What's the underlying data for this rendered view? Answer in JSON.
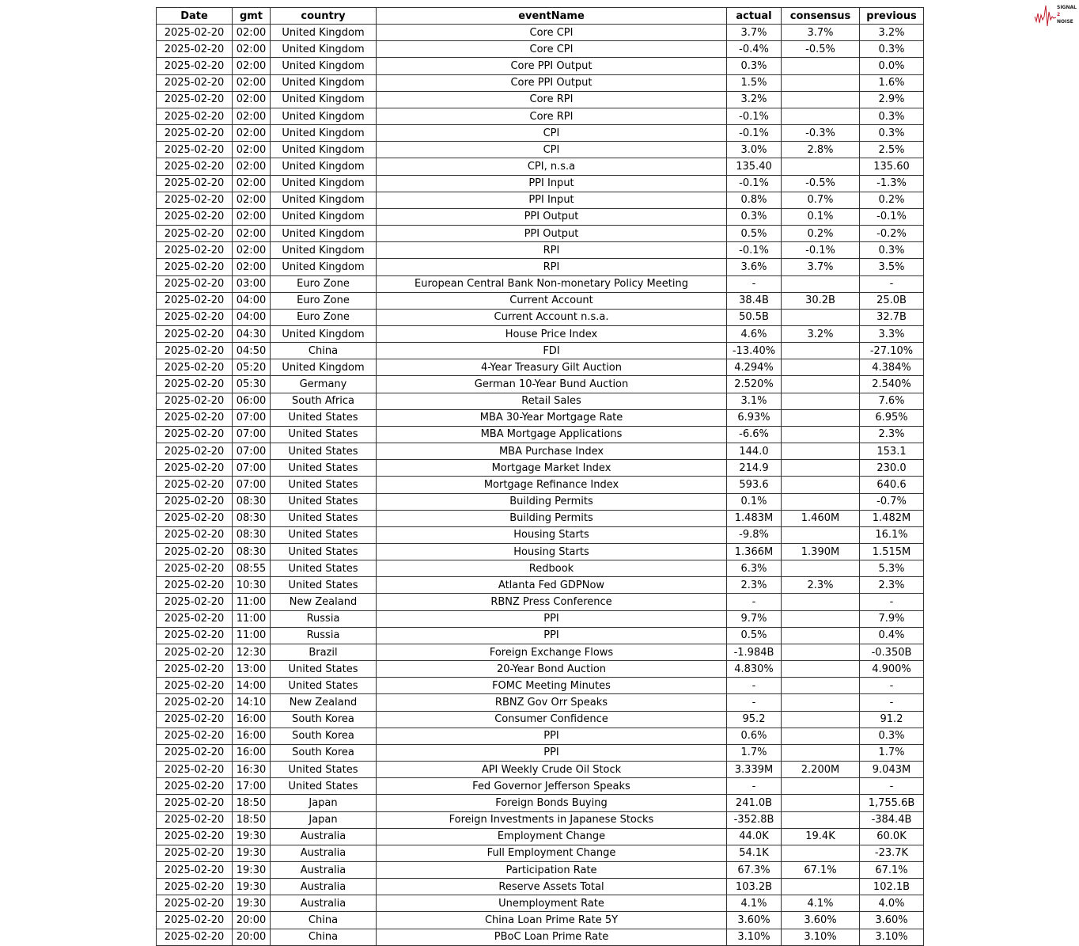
{
  "logo": {
    "line1": "SIGNAL",
    "line2": "2",
    "line3": "NOISE",
    "accent": "#c0182a"
  },
  "table": {
    "columns": [
      "Date",
      "gmt",
      "country",
      "eventName",
      "actual",
      "consensus",
      "previous"
    ],
    "rows": [
      [
        "2025-02-20",
        "02:00",
        "United Kingdom",
        "Core CPI",
        "3.7%",
        "3.7%",
        "3.2%"
      ],
      [
        "2025-02-20",
        "02:00",
        "United Kingdom",
        "Core CPI",
        "-0.4%",
        "-0.5%",
        "0.3%"
      ],
      [
        "2025-02-20",
        "02:00",
        "United Kingdom",
        "Core PPI Output",
        "0.3%",
        "",
        "0.0%"
      ],
      [
        "2025-02-20",
        "02:00",
        "United Kingdom",
        "Core PPI Output",
        "1.5%",
        "",
        "1.6%"
      ],
      [
        "2025-02-20",
        "02:00",
        "United Kingdom",
        "Core RPI",
        "3.2%",
        "",
        "2.9%"
      ],
      [
        "2025-02-20",
        "02:00",
        "United Kingdom",
        "Core RPI",
        "-0.1%",
        "",
        "0.3%"
      ],
      [
        "2025-02-20",
        "02:00",
        "United Kingdom",
        "CPI",
        "-0.1%",
        "-0.3%",
        "0.3%"
      ],
      [
        "2025-02-20",
        "02:00",
        "United Kingdom",
        "CPI",
        "3.0%",
        "2.8%",
        "2.5%"
      ],
      [
        "2025-02-20",
        "02:00",
        "United Kingdom",
        "CPI, n.s.a",
        "135.40",
        "",
        "135.60"
      ],
      [
        "2025-02-20",
        "02:00",
        "United Kingdom",
        "PPI Input",
        "-0.1%",
        "-0.5%",
        "-1.3%"
      ],
      [
        "2025-02-20",
        "02:00",
        "United Kingdom",
        "PPI Input",
        "0.8%",
        "0.7%",
        "0.2%"
      ],
      [
        "2025-02-20",
        "02:00",
        "United Kingdom",
        "PPI Output",
        "0.3%",
        "0.1%",
        "-0.1%"
      ],
      [
        "2025-02-20",
        "02:00",
        "United Kingdom",
        "PPI Output",
        "0.5%",
        "0.2%",
        "-0.2%"
      ],
      [
        "2025-02-20",
        "02:00",
        "United Kingdom",
        "RPI",
        "-0.1%",
        "-0.1%",
        "0.3%"
      ],
      [
        "2025-02-20",
        "02:00",
        "United Kingdom",
        "RPI",
        "3.6%",
        "3.7%",
        "3.5%"
      ],
      [
        "2025-02-20",
        "03:00",
        "Euro Zone",
        "European Central Bank Non-monetary Policy Meeting",
        "-",
        "",
        "-"
      ],
      [
        "2025-02-20",
        "04:00",
        "Euro Zone",
        "Current Account",
        "38.4B",
        "30.2B",
        "25.0B"
      ],
      [
        "2025-02-20",
        "04:00",
        "Euro Zone",
        "Current Account n.s.a.",
        "50.5B",
        "",
        "32.7B"
      ],
      [
        "2025-02-20",
        "04:30",
        "United Kingdom",
        "House Price Index",
        "4.6%",
        "3.2%",
        "3.3%"
      ],
      [
        "2025-02-20",
        "04:50",
        "China",
        "FDI",
        "-13.40%",
        "",
        "-27.10%"
      ],
      [
        "2025-02-20",
        "05:20",
        "United Kingdom",
        "4-Year Treasury Gilt Auction",
        "4.294%",
        "",
        "4.384%"
      ],
      [
        "2025-02-20",
        "05:30",
        "Germany",
        "German 10-Year Bund Auction",
        "2.520%",
        "",
        "2.540%"
      ],
      [
        "2025-02-20",
        "06:00",
        "South Africa",
        "Retail Sales",
        "3.1%",
        "",
        "7.6%"
      ],
      [
        "2025-02-20",
        "07:00",
        "United States",
        "MBA 30-Year Mortgage Rate",
        "6.93%",
        "",
        "6.95%"
      ],
      [
        "2025-02-20",
        "07:00",
        "United States",
        "MBA Mortgage Applications",
        "-6.6%",
        "",
        "2.3%"
      ],
      [
        "2025-02-20",
        "07:00",
        "United States",
        "MBA Purchase Index",
        "144.0",
        "",
        "153.1"
      ],
      [
        "2025-02-20",
        "07:00",
        "United States",
        "Mortgage Market Index",
        "214.9",
        "",
        "230.0"
      ],
      [
        "2025-02-20",
        "07:00",
        "United States",
        "Mortgage Refinance Index",
        "593.6",
        "",
        "640.6"
      ],
      [
        "2025-02-20",
        "08:30",
        "United States",
        "Building Permits",
        "0.1%",
        "",
        "-0.7%"
      ],
      [
        "2025-02-20",
        "08:30",
        "United States",
        "Building Permits",
        "1.483M",
        "1.460M",
        "1.482M"
      ],
      [
        "2025-02-20",
        "08:30",
        "United States",
        "Housing Starts",
        "-9.8%",
        "",
        "16.1%"
      ],
      [
        "2025-02-20",
        "08:30",
        "United States",
        "Housing Starts",
        "1.366M",
        "1.390M",
        "1.515M"
      ],
      [
        "2025-02-20",
        "08:55",
        "United States",
        "Redbook",
        "6.3%",
        "",
        "5.3%"
      ],
      [
        "2025-02-20",
        "10:30",
        "United States",
        "Atlanta Fed GDPNow",
        "2.3%",
        "2.3%",
        "2.3%"
      ],
      [
        "2025-02-20",
        "11:00",
        "New Zealand",
        "RBNZ Press Conference",
        "-",
        "",
        "-"
      ],
      [
        "2025-02-20",
        "11:00",
        "Russia",
        "PPI",
        "9.7%",
        "",
        "7.9%"
      ],
      [
        "2025-02-20",
        "11:00",
        "Russia",
        "PPI",
        "0.5%",
        "",
        "0.4%"
      ],
      [
        "2025-02-20",
        "12:30",
        "Brazil",
        "Foreign Exchange Flows",
        "-1.984B",
        "",
        "-0.350B"
      ],
      [
        "2025-02-20",
        "13:00",
        "United States",
        "20-Year Bond Auction",
        "4.830%",
        "",
        "4.900%"
      ],
      [
        "2025-02-20",
        "14:00",
        "United States",
        "FOMC Meeting Minutes",
        "-",
        "",
        "-"
      ],
      [
        "2025-02-20",
        "14:10",
        "New Zealand",
        "RBNZ Gov Orr Speaks",
        "-",
        "",
        "-"
      ],
      [
        "2025-02-20",
        "16:00",
        "South Korea",
        "Consumer Confidence",
        "95.2",
        "",
        "91.2"
      ],
      [
        "2025-02-20",
        "16:00",
        "South Korea",
        "PPI",
        "0.6%",
        "",
        "0.3%"
      ],
      [
        "2025-02-20",
        "16:00",
        "South Korea",
        "PPI",
        "1.7%",
        "",
        "1.7%"
      ],
      [
        "2025-02-20",
        "16:30",
        "United States",
        "API Weekly Crude Oil Stock",
        "3.339M",
        "2.200M",
        "9.043M"
      ],
      [
        "2025-02-20",
        "17:00",
        "United States",
        "Fed Governor Jefferson Speaks",
        "-",
        "",
        "-"
      ],
      [
        "2025-02-20",
        "18:50",
        "Japan",
        "Foreign Bonds Buying",
        "241.0B",
        "",
        "1,755.6B"
      ],
      [
        "2025-02-20",
        "18:50",
        "Japan",
        "Foreign Investments in Japanese Stocks",
        "-352.8B",
        "",
        "-384.4B"
      ],
      [
        "2025-02-20",
        "19:30",
        "Australia",
        "Employment Change",
        "44.0K",
        "19.4K",
        "60.0K"
      ],
      [
        "2025-02-20",
        "19:30",
        "Australia",
        "Full Employment Change",
        "54.1K",
        "",
        "-23.7K"
      ],
      [
        "2025-02-20",
        "19:30",
        "Australia",
        "Participation Rate",
        "67.3%",
        "67.1%",
        "67.1%"
      ],
      [
        "2025-02-20",
        "19:30",
        "Australia",
        "Reserve Assets Total",
        "103.2B",
        "",
        "102.1B"
      ],
      [
        "2025-02-20",
        "19:30",
        "Australia",
        "Unemployment Rate",
        "4.1%",
        "4.1%",
        "4.0%"
      ],
      [
        "2025-02-20",
        "20:00",
        "China",
        "China Loan Prime Rate 5Y",
        "3.60%",
        "3.60%",
        "3.60%"
      ],
      [
        "2025-02-20",
        "20:00",
        "China",
        "PBoC Loan Prime Rate",
        "3.10%",
        "3.10%",
        "3.10%"
      ]
    ]
  }
}
